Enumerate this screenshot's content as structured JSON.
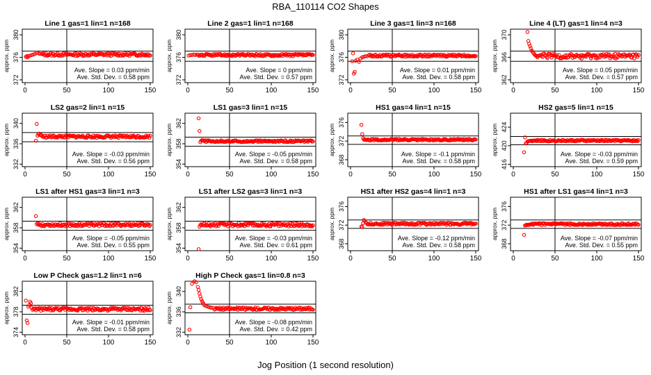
{
  "figure": {
    "title": "RBA_110114  CO2 Shapes",
    "xlabel": "Jog Position (1 second resolution)"
  },
  "colors": {
    "points": "#ff0000",
    "axis": "#000000",
    "background": "#ffffff"
  },
  "chart_data": [
    {
      "type": "scatter",
      "title": "Line 1 gas=1 lin=1 n=168",
      "ylabel": "approx. ppm",
      "xlim": [
        0,
        150
      ],
      "ylim": [
        371.5,
        381
      ],
      "xticks": [
        0,
        50,
        100,
        150
      ],
      "yticks": [
        372,
        376,
        380
      ],
      "hlines": [
        377.1,
        375.3
      ],
      "vline": 50,
      "points": [
        [
          1,
          376.1
        ],
        [
          2,
          376.2
        ],
        [
          3,
          376.0
        ],
        [
          4,
          376.2
        ],
        [
          6,
          376.3
        ],
        [
          8,
          376.4
        ],
        [
          10,
          376.5
        ],
        [
          12,
          376.6
        ],
        [
          14,
          376.8
        ],
        [
          16,
          376.7
        ],
        [
          18,
          376.6
        ]
      ],
      "series_base": 376.5,
      "series_noise": 0.25,
      "series_start": 20,
      "annotations": [
        "Ave. Slope =  0.03  ppm/min",
        "Ave. Std. Dev. =  0.58  ppm"
      ]
    },
    {
      "type": "scatter",
      "title": "Line 2 gas=1 lin=1 n=168",
      "ylabel": "approx. ppm",
      "xlim": [
        0,
        150
      ],
      "ylim": [
        371.5,
        381
      ],
      "xticks": [
        0,
        50,
        100,
        150
      ],
      "yticks": [
        372,
        376,
        380
      ],
      "hlines": [
        377.1,
        375.3
      ],
      "vline": 50,
      "points": [
        [
          1,
          376.3
        ],
        [
          3,
          376.4
        ],
        [
          5,
          376.4
        ],
        [
          7,
          376.5
        ],
        [
          9,
          376.4
        ],
        [
          11,
          376.5
        ]
      ],
      "series_base": 376.4,
      "series_noise": 0.2,
      "series_start": 12,
      "annotations": [
        "Ave. Slope =  0  ppm/min",
        "Ave. Std. Dev. =  0.57  ppm"
      ]
    },
    {
      "type": "scatter",
      "title": "Line 3 gas=1 lin=3 n=168",
      "ylabel": "approx. ppm",
      "xlim": [
        0,
        150
      ],
      "ylim": [
        371.5,
        381
      ],
      "xticks": [
        0,
        50,
        100,
        150
      ],
      "yticks": [
        372,
        376,
        380
      ],
      "hlines": [
        377.1,
        375.3
      ],
      "vline": 50,
      "points": [
        [
          2,
          375.3
        ],
        [
          3,
          376.7
        ],
        [
          4,
          373.1
        ],
        [
          5,
          373.4
        ],
        [
          6,
          375.4
        ],
        [
          8,
          375.6
        ],
        [
          10,
          375.2
        ],
        [
          12,
          375.8
        ],
        [
          14,
          376.0
        ],
        [
          16,
          376.1
        ],
        [
          18,
          376.2
        ],
        [
          20,
          376.2
        ]
      ],
      "series_base": 376.3,
      "series_noise": 0.2,
      "series_start": 22,
      "annotations": [
        "Ave. Slope =  0.01  ppm/min",
        "Ave. Std. Dev. =  0.58  ppm"
      ]
    },
    {
      "type": "scatter",
      "title": "Line 4 (LT) gas=1 lin=4 n=3",
      "ylabel": "approx. ppm",
      "xlim": [
        0,
        150
      ],
      "ylim": [
        361.5,
        371
      ],
      "xticks": [
        0,
        50,
        100,
        150
      ],
      "yticks": [
        362,
        366,
        370
      ],
      "hlines": [
        367.1,
        365.3
      ],
      "vline": 50,
      "points": [
        [
          17,
          370.5
        ],
        [
          18,
          368.9
        ],
        [
          19,
          368.4
        ],
        [
          20,
          368.0
        ],
        [
          21,
          367.6
        ],
        [
          22,
          367.2
        ],
        [
          23,
          367.0
        ],
        [
          24,
          366.8
        ],
        [
          25,
          366.6
        ],
        [
          26,
          366.4
        ],
        [
          27,
          366.3
        ],
        [
          28,
          366.2
        ],
        [
          29,
          366.0
        ]
      ],
      "series_base": 366.2,
      "series_noise": 0.45,
      "series_start": 30,
      "annotations": [
        "Ave. Slope =  0.05  ppm/min",
        "Ave. Std. Dev. =  0.57  ppm"
      ]
    },
    {
      "type": "scatter",
      "title": "LS2 gas=2 lin=1 n=15",
      "ylabel": "approx. ppm",
      "xlim": [
        0,
        150
      ],
      "ylim": [
        331.5,
        342
      ],
      "xticks": [
        0,
        50,
        100,
        150
      ],
      "yticks": [
        332,
        336,
        340
      ],
      "hlines": [
        338.2,
        336.4
      ],
      "vline": 50,
      "points": [
        [
          13,
          336.6
        ],
        [
          14,
          339.9
        ],
        [
          15,
          337.6
        ],
        [
          16,
          337.9
        ],
        [
          17,
          338.0
        ],
        [
          18,
          337.7
        ],
        [
          19,
          337.8
        ],
        [
          20,
          337.6
        ]
      ],
      "series_base": 337.4,
      "series_noise": 0.25,
      "series_start": 21,
      "annotations": [
        "Ave. Slope =  -0.03  ppm/min",
        "Ave. Std. Dev. =  0.56  ppm"
      ]
    },
    {
      "type": "scatter",
      "title": "LS1 gas=3 lin=1 n=15",
      "ylabel": "approx. ppm",
      "xlim": [
        0,
        150
      ],
      "ylim": [
        353.5,
        364
      ],
      "xticks": [
        0,
        50,
        100,
        150
      ],
      "yticks": [
        354,
        358,
        362
      ],
      "hlines": [
        359.3,
        357.5
      ],
      "vline": 50,
      "points": [
        [
          13,
          363.0
        ],
        [
          14,
          360.5
        ],
        [
          15,
          358.3
        ],
        [
          16,
          358.6
        ],
        [
          17,
          358.7
        ],
        [
          18,
          358.7
        ],
        [
          19,
          358.6
        ]
      ],
      "series_base": 358.5,
      "series_noise": 0.18,
      "series_start": 20,
      "annotations": [
        "Ave. Slope =  -0.05  ppm/min",
        "Ave. Std. Dev. =  0.58  ppm"
      ]
    },
    {
      "type": "scatter",
      "title": "HS1 gas=4 lin=1 n=15",
      "ylabel": "approx. ppm",
      "xlim": [
        0,
        150
      ],
      "ylim": [
        366.5,
        378
      ],
      "xticks": [
        0,
        50,
        100,
        150
      ],
      "yticks": [
        368,
        372,
        376
      ],
      "hlines": [
        373.1,
        371.3
      ],
      "vline": 50,
      "points": [
        [
          13,
          375.5
        ],
        [
          14,
          373.5
        ],
        [
          15,
          372.6
        ],
        [
          16,
          372.3
        ],
        [
          17,
          372.4
        ],
        [
          18,
          372.3
        ],
        [
          19,
          372.2
        ]
      ],
      "series_base": 372.3,
      "series_noise": 0.18,
      "series_start": 20,
      "annotations": [
        "Ave. Slope =  -0.1  ppm/min",
        "Ave. Std. Dev. =  0.58  ppm"
      ]
    },
    {
      "type": "scatter",
      "title": "HS2 gas=5 lin=1 n=15",
      "ylabel": "approx. ppm",
      "xlim": [
        0,
        150
      ],
      "ylim": [
        415.5,
        427
      ],
      "xticks": [
        0,
        50,
        100,
        150
      ],
      "yticks": [
        416,
        420,
        424
      ],
      "hlines": [
        422.0,
        420.2
      ],
      "vline": 50,
      "points": [
        [
          13,
          418.6
        ],
        [
          14,
          421.8
        ],
        [
          15,
          420.5
        ],
        [
          16,
          420.6
        ],
        [
          17,
          420.9
        ],
        [
          18,
          421.0
        ],
        [
          19,
          421.0
        ]
      ],
      "series_base": 421.1,
      "series_noise": 0.18,
      "series_start": 20,
      "annotations": [
        "Ave. Slope =  -0.03  ppm/min",
        "Ave. Std. Dev. =  0.59  ppm"
      ]
    },
    {
      "type": "scatter",
      "title": "LS1 after HS1 gas=3 lin=1 n=3",
      "ylabel": "approx. ppm",
      "xlim": [
        0,
        150
      ],
      "ylim": [
        353.5,
        364
      ],
      "xticks": [
        0,
        50,
        100,
        150
      ],
      "yticks": [
        354,
        358,
        362
      ],
      "hlines": [
        359.3,
        357.5
      ],
      "vline": 50,
      "points": [
        [
          13,
          360.3
        ],
        [
          14,
          358.7
        ],
        [
          15,
          358.9
        ],
        [
          16,
          358.6
        ],
        [
          17,
          358.8
        ],
        [
          18,
          358.5
        ]
      ],
      "series_base": 358.6,
      "series_noise": 0.3,
      "series_start": 19,
      "annotations": [
        "Ave. Slope =  -0.05  ppm/min",
        "Ave. Std. Dev. =  0.55  ppm"
      ]
    },
    {
      "type": "scatter",
      "title": "LS1 after LS2 gas=3 lin=1 n=3",
      "ylabel": "approx. ppm",
      "xlim": [
        0,
        150
      ],
      "ylim": [
        353.5,
        364
      ],
      "xticks": [
        0,
        50,
        100,
        150
      ],
      "yticks": [
        354,
        358,
        362
      ],
      "hlines": [
        359.3,
        357.5
      ],
      "vline": 50,
      "points": [
        [
          13,
          353.8
        ],
        [
          14,
          358.2
        ],
        [
          15,
          358.5
        ],
        [
          16,
          358.7
        ],
        [
          17,
          358.6
        ]
      ],
      "series_base": 358.6,
      "series_noise": 0.35,
      "series_start": 18,
      "annotations": [
        "Ave. Slope =  -0.03  ppm/min",
        "Ave. Std. Dev. =  0.61  ppm"
      ]
    },
    {
      "type": "scatter",
      "title": "HS1 after HS2 gas=4 lin=1 n=3",
      "ylabel": "approx. ppm",
      "xlim": [
        0,
        150
      ],
      "ylim": [
        366.5,
        378
      ],
      "xticks": [
        0,
        50,
        100,
        150
      ],
      "yticks": [
        368,
        372,
        376
      ],
      "hlines": [
        373.1,
        371.3
      ],
      "vline": 50,
      "points": [
        [
          13,
          371.7
        ],
        [
          14,
          371.6
        ],
        [
          15,
          372.4
        ],
        [
          16,
          373.1
        ],
        [
          17,
          372.9
        ],
        [
          18,
          372.6
        ],
        [
          19,
          372.5
        ]
      ],
      "series_base": 372.3,
      "series_noise": 0.25,
      "series_start": 20,
      "annotations": [
        "Ave. Slope =  -0.12  ppm/min",
        "Ave. Std. Dev. =  0.58  ppm"
      ]
    },
    {
      "type": "scatter",
      "title": "HS1 after LS1 gas=4 lin=1 n=3",
      "ylabel": "approx. ppm",
      "xlim": [
        0,
        150
      ],
      "ylim": [
        366.5,
        378
      ],
      "xticks": [
        0,
        50,
        100,
        150
      ],
      "yticks": [
        368,
        372,
        376
      ],
      "hlines": [
        373.1,
        371.3
      ],
      "vline": 50,
      "points": [
        [
          13,
          369.9
        ],
        [
          14,
          371.9
        ],
        [
          15,
          372.0
        ],
        [
          16,
          372.1
        ],
        [
          17,
          372.0
        ]
      ],
      "series_base": 372.2,
      "series_noise": 0.2,
      "series_start": 18,
      "annotations": [
        "Ave. Slope =  -0.07  ppm/min",
        "Ave. Std. Dev. =  0.55  ppm"
      ]
    },
    {
      "type": "scatter",
      "title": "Low P Check gas=1.2 lin=1 n=6",
      "ylabel": "approx. ppm",
      "xlim": [
        0,
        150
      ],
      "ylim": [
        373.5,
        384
      ],
      "xticks": [
        0,
        50,
        100,
        150
      ],
      "yticks": [
        374,
        378,
        382
      ],
      "hlines": [
        379.3,
        377.5
      ],
      "vline": 50,
      "points": [
        [
          1,
          380.2
        ],
        [
          2,
          376.3
        ],
        [
          3,
          375.8
        ],
        [
          4,
          379.0
        ],
        [
          5,
          379.3
        ],
        [
          6,
          380.0
        ],
        [
          7,
          379.7
        ],
        [
          8,
          378.8
        ],
        [
          9,
          378.4
        ],
        [
          10,
          378.6
        ],
        [
          11,
          378.5
        ],
        [
          12,
          378.7
        ]
      ],
      "series_base": 378.5,
      "series_noise": 0.3,
      "series_start": 13,
      "annotations": [
        "Ave. Slope =  -0.01  ppm/min",
        "Ave. Std. Dev. =  0.58  ppm"
      ]
    },
    {
      "type": "scatter",
      "title": "High P Check gas=1 lin=0.8 n=3",
      "ylabel": "approx. ppm",
      "xlim": [
        0,
        150
      ],
      "ylim": [
        331.5,
        342
      ],
      "xticks": [
        0,
        50,
        100,
        150
      ],
      "yticks": [
        332,
        336,
        340
      ],
      "hlines": [
        337.5,
        335.8
      ],
      "vline": 50,
      "points": [
        [
          2,
          332.5
        ],
        [
          3,
          336.9
        ],
        [
          5,
          341.5
        ],
        [
          8,
          342.0
        ],
        [
          10,
          341.8
        ],
        [
          12,
          340.9
        ],
        [
          13,
          340.3
        ],
        [
          14,
          339.6
        ],
        [
          15,
          339.0
        ],
        [
          16,
          338.5
        ],
        [
          17,
          338.1
        ],
        [
          18,
          337.8
        ],
        [
          19,
          337.5
        ],
        [
          20,
          337.3
        ],
        [
          22,
          337.1
        ],
        [
          24,
          337.0
        ],
        [
          26,
          336.9
        ],
        [
          28,
          336.8
        ],
        [
          30,
          336.8
        ]
      ],
      "series_base": 336.6,
      "series_noise": 0.25,
      "series_start": 32,
      "annotations": [
        "Ave. Slope =  -0.08  ppm/min",
        "Ave. Std. Dev. =  0.42  ppm"
      ]
    }
  ]
}
